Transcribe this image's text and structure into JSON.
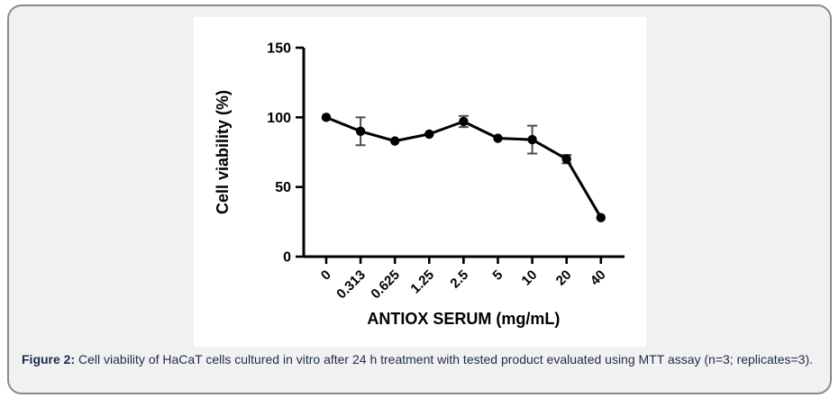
{
  "figure_panel": {
    "background": "#f1f1f1",
    "border_color": "#8b8b8b"
  },
  "chart_data": {
    "type": "line",
    "title": "",
    "xlabel": "ANTIOX SERUM (mg/mL)",
    "ylabel": "Cell viability (%)",
    "categories": [
      "0",
      "0.313",
      "0.625",
      "1.25",
      "2.5",
      "5",
      "10",
      "20",
      "40"
    ],
    "values": [
      100,
      90,
      83,
      88,
      97,
      85,
      84,
      70,
      28
    ],
    "errors": [
      0,
      10,
      0,
      0,
      4,
      0,
      10,
      3,
      0
    ],
    "yticks": [
      0,
      50,
      100,
      150
    ],
    "ylim": [
      0,
      150
    ],
    "grid": false,
    "legend": "none",
    "marker": "filled-circle",
    "axis_color": "#000000",
    "text_color": "#000000",
    "line_color": "#000000",
    "marker_color": "#000000",
    "error_bar_color": "#4d4d4d"
  },
  "caption": {
    "label": "Figure 2:",
    "text": " Cell viability of HaCaT cells cultured in vitro after 24 h treatment with tested product evaluated using MTT assay (n=3; replicates=3).",
    "color": "#1c2b4a"
  }
}
